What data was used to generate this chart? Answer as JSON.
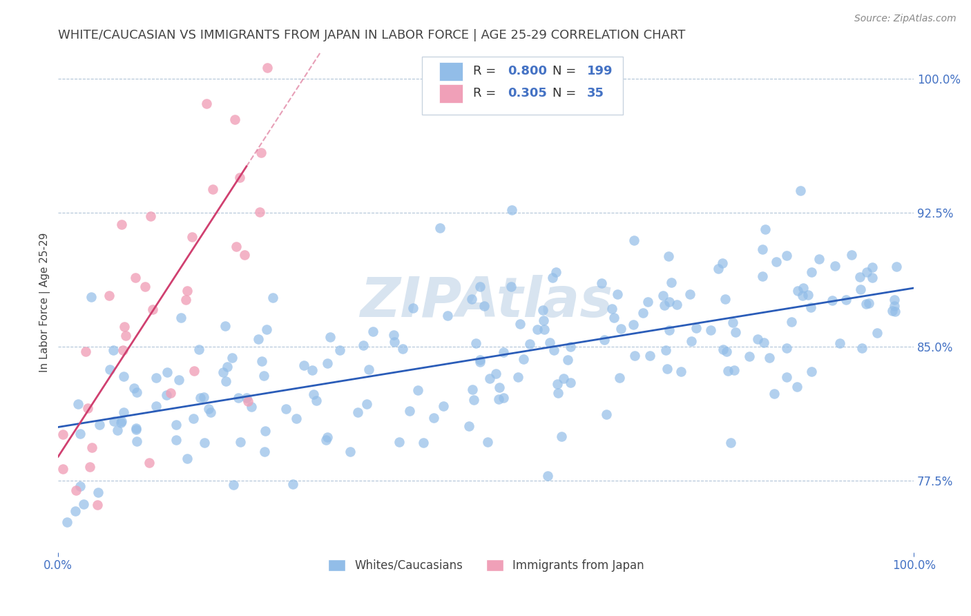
{
  "title": "WHITE/CAUCASIAN VS IMMIGRANTS FROM JAPAN IN LABOR FORCE | AGE 25-29 CORRELATION CHART",
  "source": "Source: ZipAtlas.com",
  "ylabel": "In Labor Force | Age 25-29",
  "xlim": [
    0.0,
    1.0
  ],
  "ylim": [
    0.735,
    1.015
  ],
  "blue_R": 0.8,
  "blue_N": 199,
  "pink_R": 0.305,
  "pink_N": 35,
  "blue_color": "#92bde8",
  "pink_color": "#f0a0b8",
  "blue_line_color": "#2a5cb8",
  "pink_line_color": "#d04070",
  "legend_text_color": "#4472c4",
  "title_color": "#444444",
  "source_color": "#888888",
  "background_color": "#ffffff",
  "watermark": "ZIPAtlas",
  "watermark_color": "#d8e4f0",
  "ytick_positions": [
    0.775,
    0.85,
    0.925,
    1.0
  ],
  "ytick_labels": [
    "77.5%",
    "85.0%",
    "92.5%",
    "100.0%"
  ],
  "xtick_positions": [
    0.0,
    1.0
  ],
  "xtick_labels": [
    "0.0%",
    "100.0%"
  ]
}
